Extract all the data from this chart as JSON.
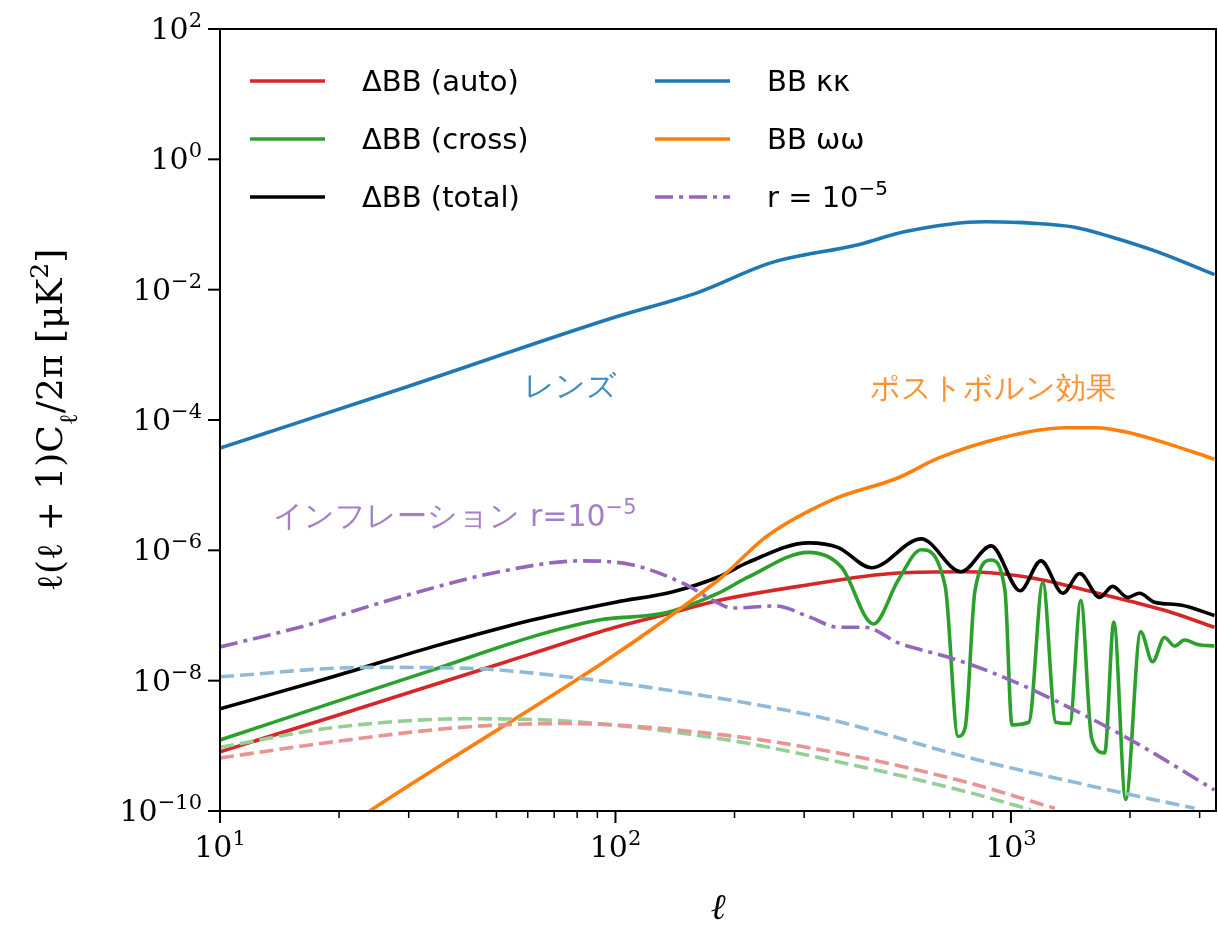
{
  "chart_data": {
    "type": "line",
    "xlabel": "ℓ",
    "ylabel": "ℓ(ℓ + 1)C$_{ℓ}$/2π [μK$^{2}$]",
    "log": "xy",
    "grid": false,
    "legend": "top left",
    "xlim": [
      10,
      3300
    ],
    "ylim": [
      1e-10,
      100
    ],
    "xticks": [
      {
        "value": 10,
        "label": "10$^{1}$"
      },
      {
        "value": 100,
        "label": "10$^{2}$"
      },
      {
        "value": 1000,
        "label": "10$^{3}$"
      }
    ],
    "yticks": [
      {
        "value": 1e-10,
        "label": "10$^{−10}$"
      },
      {
        "value": 1e-08,
        "label": "10$^{−8}$"
      },
      {
        "value": 1e-06,
        "label": "10$^{−6}$"
      },
      {
        "value": 0.0001,
        "label": "10$^{−4}$"
      },
      {
        "value": 0.01,
        "label": "10$^{−2}$"
      },
      {
        "value": 1,
        "label": "10$^{0}$"
      },
      {
        "value": 100,
        "label": "10$^{2}$"
      }
    ],
    "annotations": [
      "レンズ",
      "ポストボルン効果",
      "インフレーション r=10$^{−5}$"
    ],
    "series": [
      {
        "name": "ΔBB (auto)",
        "color": "#d62728",
        "line_style": "solid",
        "x": [
          10,
          19.3,
          34.4,
          61.5,
          100,
          139,
          182,
          290,
          519,
          766,
          1122,
          1656,
          2445,
          3270
        ],
        "values": [
          8.1e-10,
          2.8e-09,
          8.5e-09,
          2.6e-08,
          6.6e-08,
          1.1e-07,
          1.7e-07,
          2.8e-07,
          4.5e-07,
          4.7e-07,
          3.8e-07,
          2.2e-07,
          1.2e-07,
          6.6e-08
        ]
      },
      {
        "name": "ΔBB (cross)",
        "color": "#2ca02c",
        "line_style": "solid",
        "x": [
          10,
          19.3,
          34.4,
          61.5,
          90.8,
          134,
          182,
          217,
          308,
          373,
          449,
          519,
          593,
          682,
          735,
          766,
          811,
          891,
          966,
          1006,
          1110,
          1204,
          1298,
          1408,
          1502,
          1600,
          1726,
          1820,
          1951,
          2128,
          2281,
          2445,
          2592,
          2748,
          2964,
          3270
        ],
        "values": [
          1.23e-09,
          4.6e-09,
          1.45e-08,
          4.7e-08,
          8.5e-08,
          1.1e-07,
          2.2e-07,
          3.9e-07,
          9.3e-07,
          5.5e-07,
          7.4e-08,
          3.5e-07,
          1.02e-06,
          2.8e-07,
          1.4e-09,
          1.9e-09,
          2.4e-07,
          7.1e-07,
          2.4e-07,
          2.1e-09,
          2.3e-09,
          3.2e-07,
          2.3e-09,
          2.2e-09,
          1.7e-07,
          1.3e-09,
          7.8e-10,
          7.9e-08,
          1.5e-10,
          5.6e-08,
          1.95e-08,
          4.6e-08,
          3.4e-08,
          4.2e-08,
          3.6e-08,
          3.4e-08
        ]
      },
      {
        "name": "ΔBB (total)",
        "color": "#000000",
        "line_style": "solid",
        "x": [
          10,
          19.3,
          34.4,
          61.5,
          100,
          139,
          182,
          217,
          308,
          366,
          444,
          593,
          748,
          891,
          1055,
          1191,
          1353,
          1493,
          1676,
          1807,
          1973,
          2114,
          2306,
          2684,
          3270
        ],
        "values": [
          3.7e-09,
          1.15e-08,
          3.3e-08,
          8.5e-08,
          1.6e-07,
          2.3e-07,
          3.9e-07,
          6.6e-07,
          1.3e-06,
          1.1e-06,
          5.4e-07,
          1.5e-06,
          4.7e-07,
          1.17e-06,
          2.4e-07,
          6.9e-07,
          2.2e-07,
          4.4e-07,
          1.9e-07,
          2.8e-07,
          1.9e-07,
          2.2e-07,
          1.6e-07,
          1.45e-07,
          1e-07
        ]
      },
      {
        "name": "BB κκ",
        "color": "#1f77b4",
        "line_style": "solid",
        "x": [
          10,
          30,
          100,
          162,
          248,
          411,
          541,
          859,
          1122,
          1449,
          1786,
          2350,
          3270
        ],
        "values": [
          3.7e-05,
          0.00033,
          0.0038,
          0.0091,
          0.026,
          0.049,
          0.078,
          0.11,
          0.105,
          0.091,
          0.065,
          0.038,
          0.017
        ]
      },
      {
        "name": "BB ωω",
        "color": "#ff7f0e",
        "line_style": "solid",
        "x": [
          23.9,
          182,
          240,
          352,
          519,
          655,
          966,
          1368,
          1643,
          1940,
          2443,
          3270
        ],
        "values": [
          1e-10,
          3.5e-07,
          1.6e-06,
          5.9e-06,
          1.3e-05,
          2.6e-05,
          5.5e-05,
          7.6e-05,
          7.6e-05,
          6.6e-05,
          4.5e-05,
          2.5e-05
        ]
      },
      {
        "name": "r = 10$^{−5}$",
        "color": "#9467bd",
        "line_style": "dashdot",
        "x": [
          10,
          15.9,
          28.4,
          50.8,
          82.3,
          110,
          147,
          182,
          197,
          254,
          308,
          366,
          428,
          519,
          693,
          891,
          1240,
          2010,
          3270
        ],
        "values": [
          3.3e-08,
          6.6e-08,
          1.9e-07,
          4.7e-07,
          6.9e-07,
          6e-07,
          3.2e-07,
          1.55e-07,
          1.3e-07,
          1.4e-07,
          9.6e-08,
          6.6e-08,
          6.6e-08,
          3.8e-08,
          2.3e-08,
          1.35e-08,
          5.6e-09,
          1.23e-09,
          2.1e-10
        ]
      },
      {
        "color": "#8fbbd9",
        "line_style": "dashed",
        "x": [
          10,
          23.5,
          42,
          75,
          182,
          352,
          766,
          1656,
          2912
        ],
        "values": [
          1.15e-08,
          1.6e-08,
          1.55e-08,
          1.15e-08,
          5.4e-09,
          2.5e-09,
          6.8e-10,
          2.3e-10,
          1.1e-10
        ]
      },
      {
        "color": "#95cf95",
        "line_style": "dashed",
        "x": [
          10,
          19.3,
          42,
          75,
          182,
          352,
          766,
          1122
        ],
        "values": [
          9.5e-10,
          1.9e-09,
          2.6e-09,
          2.4e-09,
          1.3e-09,
          6e-10,
          2e-10,
          1.05e-10
        ]
      },
      {
        "color": "#ea9393",
        "line_style": "dashed",
        "x": [
          10,
          19.3,
          42,
          75,
          182,
          352,
          766,
          1291
        ],
        "values": [
          6.5e-10,
          1.15e-09,
          1.95e-09,
          2.2e-09,
          1.5e-09,
          8.1e-10,
          2.8e-10,
          1.1e-10
        ]
      }
    ]
  }
}
